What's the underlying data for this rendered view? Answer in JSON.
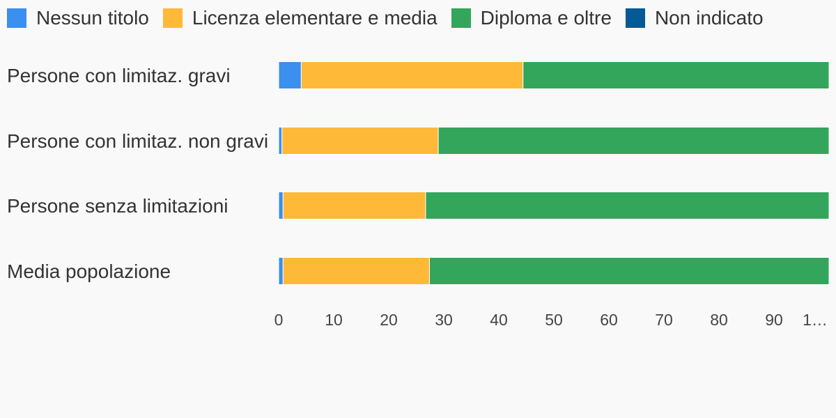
{
  "chart_data": {
    "type": "bar",
    "orientation": "horizontal",
    "stacked": true,
    "categories": [
      "Persone con limitaz. gravi",
      "Persone con limitaz. non gravi",
      "Persone senza limitazioni",
      "Media popolazione"
    ],
    "series": [
      {
        "name": "Nessun titolo",
        "color": "#3a8fef",
        "values": [
          4.1,
          0.6,
          0.8,
          0.8
        ]
      },
      {
        "name": "Licenza elementare e media",
        "color": "#ffb938",
        "values": [
          40.3,
          28.4,
          25.9,
          26.6
        ]
      },
      {
        "name": "Diploma e oltre",
        "color": "#33a65c",
        "values": [
          55.6,
          71.0,
          73.3,
          72.6
        ]
      },
      {
        "name": "Non indicato",
        "color": "#035a96",
        "values": [
          0,
          0,
          0,
          0
        ]
      }
    ],
    "xlim": [
      0,
      100
    ],
    "xticks": [
      "0",
      "10",
      "20",
      "30",
      "40",
      "50",
      "60",
      "70",
      "80",
      "90",
      "1…"
    ],
    "legend_position": "top",
    "grid": false
  }
}
